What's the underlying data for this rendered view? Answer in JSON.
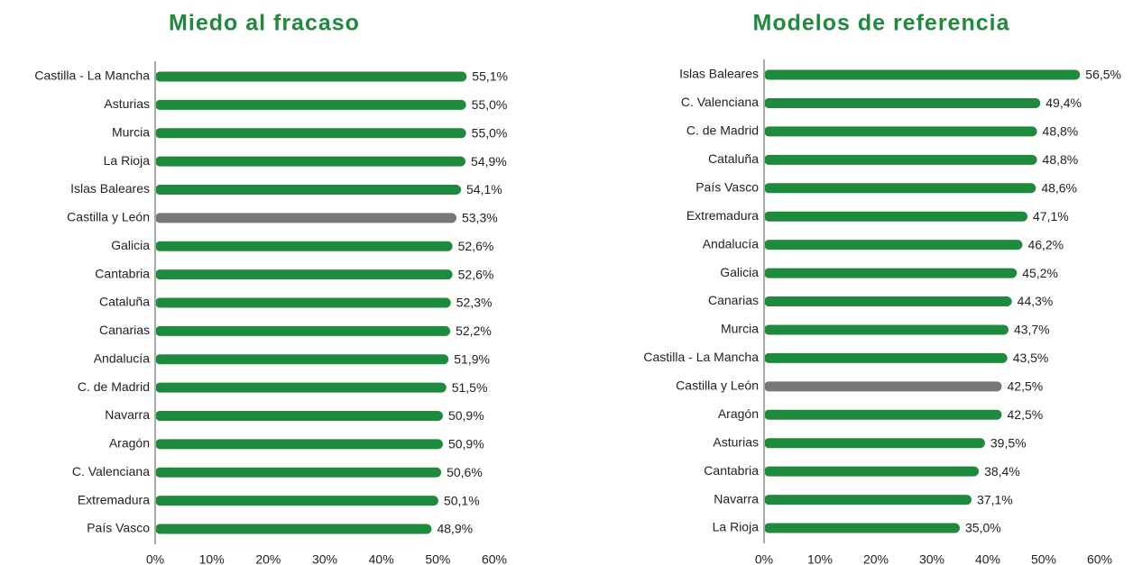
{
  "chart_data": [
    {
      "type": "barh",
      "title": "Miedo al fracaso",
      "categories": [
        "Castilla - La Mancha",
        "Asturias",
        "Murcia",
        "La Rioja",
        "Islas Baleares",
        "Castilla y León",
        "Galicia",
        "Cantabria",
        "Cataluña",
        "Canarias",
        "Andalucía",
        "C. de Madrid",
        "Navarra",
        "Aragón",
        "C. Valenciana",
        "Extremadura",
        "País Vasco"
      ],
      "values": [
        55.1,
        55.0,
        55.0,
        54.9,
        54.1,
        53.3,
        52.6,
        52.6,
        52.3,
        52.2,
        51.9,
        51.5,
        50.9,
        50.9,
        50.6,
        50.1,
        48.9
      ],
      "value_labels": [
        "55,1%",
        "55,0%",
        "55,0%",
        "54,9%",
        "54,1%",
        "53,3%",
        "52,6%",
        "52,6%",
        "52,3%",
        "52,2%",
        "51,9%",
        "51,5%",
        "50,9%",
        "50,9%",
        "50,6%",
        "50,1%",
        "48,9%"
      ],
      "colors": [
        "#1e8a3c",
        "#1e8a3c",
        "#1e8a3c",
        "#1e8a3c",
        "#1e8a3c",
        "#777777",
        "#1e8a3c",
        "#1e8a3c",
        "#1e8a3c",
        "#1e8a3c",
        "#1e8a3c",
        "#1e8a3c",
        "#1e8a3c",
        "#1e8a3c",
        "#1e8a3c",
        "#1e8a3c",
        "#1e8a3c"
      ],
      "xlim": [
        0,
        60
      ],
      "xticks": [
        {
          "value": 0,
          "label": "0%"
        },
        {
          "value": 10,
          "label": "10%"
        },
        {
          "value": 20,
          "label": "20%"
        },
        {
          "value": 30,
          "label": "30%"
        },
        {
          "value": 40,
          "label": "40%"
        },
        {
          "value": 50,
          "label": "50%"
        },
        {
          "value": 60,
          "label": "60%"
        }
      ]
    },
    {
      "type": "barh",
      "title": "Modelos de referencia",
      "categories": [
        "Islas Baleares",
        "C. Valenciana",
        "C. de Madrid",
        "Cataluña",
        "País Vasco",
        "Extremadura",
        "Andalucía",
        "Galicia",
        "Canarias",
        "Murcia",
        "Castilla - La Mancha",
        "Castilla y León",
        "Aragón",
        "Asturias",
        "Cantabria",
        "Navarra",
        "La Rioja"
      ],
      "values": [
        56.5,
        49.4,
        48.8,
        48.8,
        48.6,
        47.1,
        46.2,
        45.2,
        44.3,
        43.7,
        43.5,
        42.5,
        42.5,
        39.5,
        38.4,
        37.1,
        35.0
      ],
      "value_labels": [
        "56,5%",
        "49,4%",
        "48,8%",
        "48,8%",
        "48,6%",
        "47,1%",
        "46,2%",
        "45,2%",
        "44,3%",
        "43,7%",
        "43,5%",
        "42,5%",
        "42,5%",
        "39,5%",
        "38,4%",
        "37,1%",
        "35,0%"
      ],
      "colors": [
        "#1e8a3c",
        "#1e8a3c",
        "#1e8a3c",
        "#1e8a3c",
        "#1e8a3c",
        "#1e8a3c",
        "#1e8a3c",
        "#1e8a3c",
        "#1e8a3c",
        "#1e8a3c",
        "#1e8a3c",
        "#777777",
        "#1e8a3c",
        "#1e8a3c",
        "#1e8a3c",
        "#1e8a3c",
        "#1e8a3c"
      ],
      "xlim": [
        0,
        60
      ],
      "xticks": [
        {
          "value": 0,
          "label": "0%"
        },
        {
          "value": 10,
          "label": "10%"
        },
        {
          "value": 20,
          "label": "20%"
        },
        {
          "value": 30,
          "label": "30%"
        },
        {
          "value": 40,
          "label": "40%"
        },
        {
          "value": 50,
          "label": "50%"
        },
        {
          "value": 60,
          "label": "60%"
        }
      ]
    }
  ]
}
